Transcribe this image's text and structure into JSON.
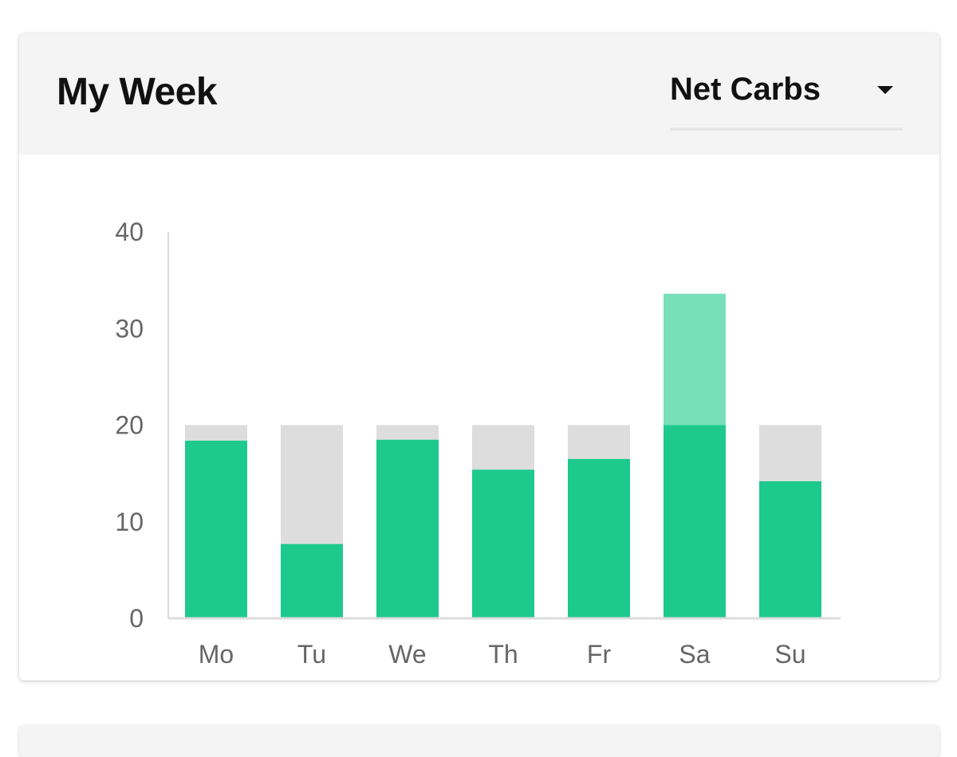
{
  "card": {
    "title": "My Week",
    "metric_select": {
      "value": "Net Carbs",
      "caret_icon": "caret-down-icon"
    }
  },
  "chart_data": {
    "type": "bar",
    "categories": [
      "Mo",
      "Tu",
      "We",
      "Th",
      "Fr",
      "Sa",
      "Su"
    ],
    "goal": 20,
    "series": [
      {
        "values": [
          18.4,
          7.7,
          18.5,
          15.4,
          16.5,
          20,
          14.2
        ]
      },
      {
        "values": [
          1.6,
          12.3,
          1.5,
          4.6,
          3.5,
          0,
          5.8
        ]
      },
      {
        "values": [
          0,
          0,
          0,
          0,
          0,
          13.6,
          0
        ]
      }
    ],
    "yticks": [
      "0",
      "10",
      "20",
      "30",
      "40"
    ],
    "ylim": [
      0,
      40
    ],
    "grid": false,
    "colors": {
      "consumed": "#1ec98e",
      "remaining": "#dddddd",
      "over": "#79dfbb",
      "axis": "#dddddd",
      "tick_label": "#666666"
    }
  }
}
